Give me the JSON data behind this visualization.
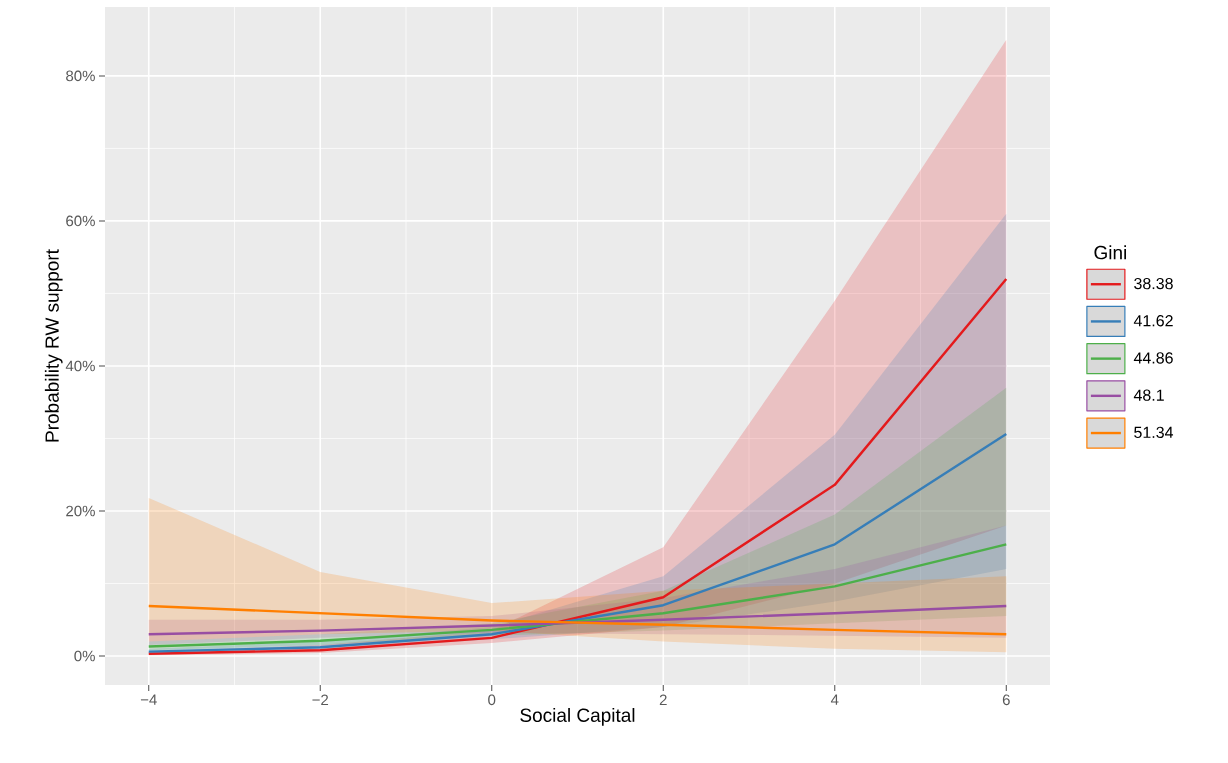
{
  "chart_data": {
    "type": "line",
    "xlabel": "Social Capital",
    "ylabel": "Probability RW support",
    "legend_title": "Gini",
    "x": [
      -4,
      -2,
      0,
      2,
      4,
      6
    ],
    "series": [
      {
        "name": "38.38",
        "color": "#e41a1c",
        "values": [
          0.3,
          0.8,
          2.5,
          8.1,
          23.6,
          52.0
        ],
        "lower": [
          0.1,
          0.4,
          1.8,
          4.0,
          10.0,
          18.0
        ],
        "upper": [
          0.6,
          1.5,
          3.5,
          15.0,
          49.0,
          85.0
        ]
      },
      {
        "name": "41.62",
        "color": "#377eb8",
        "values": [
          0.6,
          1.2,
          3.0,
          7.0,
          15.4,
          30.6
        ],
        "lower": [
          0.3,
          0.8,
          2.3,
          4.0,
          7.5,
          12.0
        ],
        "upper": [
          1.0,
          2.0,
          4.0,
          11.0,
          30.5,
          61.0
        ]
      },
      {
        "name": "44.86",
        "color": "#4daf4a",
        "values": [
          1.3,
          2.1,
          3.6,
          5.9,
          9.6,
          15.4
        ],
        "lower": [
          0.8,
          1.5,
          2.8,
          3.5,
          4.5,
          5.5
        ],
        "upper": [
          2.0,
          3.0,
          4.5,
          9.0,
          19.5,
          37.0
        ]
      },
      {
        "name": "48.1",
        "color": "#984ea3",
        "values": [
          3.0,
          3.5,
          4.2,
          5.0,
          5.9,
          6.9
        ],
        "lower": [
          1.5,
          2.5,
          3.2,
          3.0,
          2.8,
          2.5
        ],
        "upper": [
          5.0,
          5.0,
          5.5,
          8.0,
          12.0,
          18.0
        ]
      },
      {
        "name": "51.34",
        "color": "#ff7f00",
        "values": [
          6.9,
          5.9,
          4.9,
          4.3,
          3.6,
          3.0
        ],
        "lower": [
          2.0,
          3.0,
          3.5,
          2.0,
          1.0,
          0.5
        ],
        "upper": [
          21.8,
          11.6,
          7.3,
          9.0,
          10.0,
          11.0
        ]
      }
    ],
    "xlim": [
      -4.51,
      6.51
    ],
    "ylim": [
      -4,
      89.5
    ],
    "xticks": [
      {
        "value": -4,
        "label": "−4"
      },
      {
        "value": -2,
        "label": "−2"
      },
      0,
      2,
      4,
      6
    ],
    "yticks": [
      {
        "value": 0,
        "label": "0%"
      },
      {
        "value": 20,
        "label": "20%"
      },
      {
        "value": 40,
        "label": "40%"
      },
      {
        "value": 60,
        "label": "60%"
      },
      {
        "value": 80,
        "label": "80%"
      }
    ],
    "grid": true,
    "legend": "right",
    "line_style": "solid",
    "marker": "none"
  }
}
